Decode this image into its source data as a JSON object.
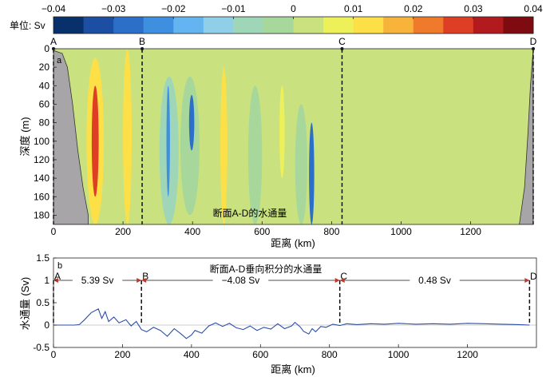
{
  "colorbar": {
    "label": "单位: Sv",
    "ticks": [
      "−0.04",
      "−0.03",
      "−0.02",
      "−0.01",
      "0",
      "0.01",
      "0.02",
      "0.03",
      "0.04"
    ],
    "range": [
      -0.04,
      0.04
    ],
    "colors": [
      "#08306b",
      "#1c4fa3",
      "#2b6fc9",
      "#3e8fe0",
      "#63b4f0",
      "#8fd0e8",
      "#9fd6b8",
      "#a7d79a",
      "#c9e27f",
      "#eef05a",
      "#fde047",
      "#f8b43a",
      "#f07a2b",
      "#de3e24",
      "#b31a1e",
      "#7d0b10"
    ]
  },
  "chart_data": [
    {
      "type": "heatmap",
      "panel_label": "a",
      "title": "断面A-D的水通量",
      "xlabel": "距离 (km)",
      "ylabel": "深度 (m)",
      "xlim": [
        0,
        1380
      ],
      "ylim": [
        190,
        0
      ],
      "xticks": [
        0,
        200,
        400,
        600,
        800,
        1000,
        1200
      ],
      "yticks": [
        0,
        20,
        40,
        60,
        80,
        100,
        120,
        140,
        160,
        180
      ],
      "background_value": 0.003,
      "features": [
        {
          "x_start": 95,
          "x_end": 145,
          "depth_start": 10,
          "depth_end": 190,
          "value": 0.012
        },
        {
          "x_start": 110,
          "x_end": 130,
          "depth_start": 40,
          "depth_end": 160,
          "value": 0.025
        },
        {
          "x_start": 200,
          "x_end": 225,
          "depth_start": 0,
          "depth_end": 190,
          "value": 0.01
        },
        {
          "x_start": 305,
          "x_end": 360,
          "depth_start": 30,
          "depth_end": 190,
          "value": -0.006
        },
        {
          "x_start": 325,
          "x_end": 335,
          "depth_start": 40,
          "depth_end": 160,
          "value": -0.025
        },
        {
          "x_start": 365,
          "x_end": 420,
          "depth_start": 30,
          "depth_end": 180,
          "value": -0.005
        },
        {
          "x_start": 390,
          "x_end": 405,
          "depth_start": 50,
          "depth_end": 110,
          "value": -0.028
        },
        {
          "x_start": 480,
          "x_end": 500,
          "depth_start": 20,
          "depth_end": 190,
          "value": 0.01
        },
        {
          "x_start": 560,
          "x_end": 600,
          "depth_start": 40,
          "depth_end": 190,
          "value": -0.004
        },
        {
          "x_start": 695,
          "x_end": 730,
          "depth_start": 60,
          "depth_end": 190,
          "value": -0.004
        },
        {
          "x_start": 735,
          "x_end": 750,
          "depth_start": 80,
          "depth_end": 190,
          "value": -0.03
        },
        {
          "x_start": 650,
          "x_end": 665,
          "depth_start": 40,
          "depth_end": 140,
          "value": 0.008
        }
      ],
      "bathymetry": {
        "left_x": [
          0,
          25,
          40,
          55,
          70,
          85,
          100,
          100
        ],
        "left_depth": [
          2,
          5,
          20,
          60,
          110,
          150,
          180,
          190
        ],
        "right_x": [
          1340,
          1355,
          1365,
          1372,
          1378,
          1380
        ],
        "right_depth": [
          190,
          150,
          90,
          40,
          10,
          0
        ]
      },
      "sections": [
        {
          "label": "A",
          "x": 0
        },
        {
          "label": "B",
          "x": 255
        },
        {
          "label": "C",
          "x": 830
        },
        {
          "label": "D",
          "x": 1380
        }
      ]
    },
    {
      "type": "line",
      "panel_label": "b",
      "title": "断面A-D垂向积分的水通量",
      "xlabel": "距离 (km)",
      "ylabel": "水通量 (Sv)",
      "xlim": [
        0,
        1400
      ],
      "ylim": [
        -0.5,
        1.5
      ],
      "xticks": [
        0,
        200,
        400,
        600,
        800,
        1000,
        1200
      ],
      "yticks": [
        -0.5,
        0,
        0.5,
        1.0,
        1.5
      ],
      "x": [
        0,
        60,
        75,
        90,
        110,
        130,
        140,
        150,
        160,
        175,
        190,
        210,
        225,
        240,
        255,
        270,
        290,
        310,
        330,
        350,
        370,
        385,
        400,
        410,
        430,
        450,
        470,
        490,
        510,
        530,
        550,
        570,
        590,
        610,
        630,
        650,
        670,
        690,
        700,
        715,
        725,
        740,
        750,
        760,
        775,
        790,
        810,
        830,
        850,
        880,
        920,
        960,
        1000,
        1050,
        1100,
        1150,
        1200,
        1250,
        1300,
        1350,
        1380
      ],
      "y": [
        0,
        0,
        0.01,
        0.12,
        0.28,
        0.36,
        0.15,
        0.3,
        0.08,
        0.18,
        0.05,
        0.12,
        -0.02,
        0.08,
        -0.1,
        -0.15,
        -0.05,
        -0.12,
        -0.25,
        -0.08,
        -0.2,
        -0.3,
        -0.22,
        -0.12,
        -0.18,
        -0.02,
        0.05,
        -0.03,
        0.04,
        -0.06,
        -0.1,
        -0.02,
        -0.12,
        -0.05,
        -0.09,
        0.03,
        -0.08,
        -0.02,
        0.06,
        -0.04,
        -0.14,
        -0.2,
        -0.08,
        -0.15,
        -0.03,
        -0.05,
        0.02,
        -0.01,
        0.03,
        0.01,
        0.03,
        0.02,
        0.04,
        0.02,
        0.03,
        0.02,
        0.04,
        0.03,
        0.02,
        0.01,
        0.0
      ],
      "sections": [
        {
          "label": "A",
          "x": 0
        },
        {
          "label": "B",
          "x": 255
        },
        {
          "label": "C",
          "x": 830
        },
        {
          "label": "D",
          "x": 1380
        }
      ],
      "segment_totals": [
        {
          "from": "A",
          "to": "B",
          "label": "5.39 Sv"
        },
        {
          "from": "B",
          "to": "C",
          "label": "−4.08 Sv"
        },
        {
          "from": "C",
          "to": "D",
          "label": "0.48 Sv"
        }
      ]
    }
  ]
}
